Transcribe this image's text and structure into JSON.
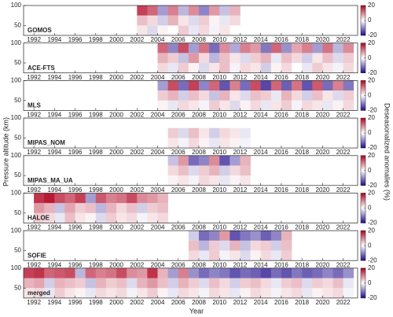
{
  "chart_data": {
    "type": "heatmap",
    "xlabel": "Year",
    "ylabel": "Pressure altitude (km)",
    "colorbar_label": "Deseasonalized anomalies (%)",
    "xlim": [
      1991,
      2023.4
    ],
    "xticks": [
      1992,
      1994,
      1996,
      1998,
      2000,
      2002,
      2004,
      2006,
      2008,
      2010,
      2012,
      2014,
      2016,
      2018,
      2020,
      2022
    ],
    "ylim": [
      25,
      100
    ],
    "yticks": [
      50,
      100
    ],
    "clim": [
      -20,
      20
    ],
    "cticks": [
      20,
      0,
      -20
    ],
    "colormap": [
      "#1e0a8c",
      "#ffffff",
      "#b0001e"
    ],
    "x_bins": [
      1991,
      1992,
      1993,
      1994,
      1995,
      1996,
      1997,
      1998,
      1999,
      2000,
      2001,
      2002,
      2003,
      2004,
      2005,
      2006,
      2007,
      2008,
      2009,
      2010,
      2011,
      2012,
      2013,
      2014,
      2015,
      2016,
      2017,
      2018,
      2019,
      2020,
      2021,
      2022,
      2023
    ],
    "y_bins": [
      25,
      50,
      75,
      100
    ],
    "panels": [
      {
        "name": "GOMOS",
        "values": [
          [
            null,
            null,
            null,
            null,
            null,
            null,
            null,
            null,
            null,
            null,
            null,
            2,
            -3,
            1,
            0,
            4,
            -2,
            3,
            -1,
            2,
            0,
            null,
            null,
            null,
            null,
            null,
            null,
            null,
            null,
            null,
            null,
            null
          ],
          [
            null,
            null,
            null,
            null,
            null,
            null,
            null,
            null,
            null,
            null,
            null,
            5,
            3,
            -4,
            6,
            2,
            -3,
            4,
            1,
            -2,
            3,
            null,
            null,
            null,
            null,
            null,
            null,
            null,
            null,
            null,
            null,
            null
          ],
          [
            null,
            null,
            null,
            null,
            null,
            null,
            null,
            null,
            null,
            null,
            null,
            15,
            12,
            -8,
            10,
            -6,
            9,
            -10,
            8,
            -5,
            6,
            null,
            null,
            null,
            null,
            null,
            null,
            null,
            null,
            null,
            null,
            null
          ]
        ]
      },
      {
        "name": "ACE-FTS",
        "values": [
          [
            null,
            null,
            null,
            null,
            null,
            null,
            null,
            null,
            null,
            null,
            null,
            null,
            null,
            3,
            -2,
            4,
            1,
            -3,
            2,
            5,
            -1,
            3,
            2,
            -4,
            1,
            3,
            0,
            -2,
            4,
            2,
            -1,
            3
          ],
          [
            null,
            null,
            null,
            null,
            null,
            null,
            null,
            null,
            null,
            null,
            null,
            null,
            null,
            6,
            4,
            -5,
            8,
            3,
            -6,
            5,
            2,
            -3,
            4,
            6,
            -2,
            5,
            3,
            -4,
            2,
            5,
            -3,
            4
          ],
          [
            null,
            null,
            null,
            null,
            null,
            null,
            null,
            null,
            null,
            null,
            null,
            null,
            null,
            12,
            -10,
            14,
            -8,
            11,
            -12,
            9,
            -7,
            10,
            8,
            -11,
            12,
            -9,
            7,
            10,
            -8,
            11,
            -6,
            9
          ]
        ]
      },
      {
        "name": "MLS",
        "values": [
          [
            null,
            null,
            null,
            null,
            null,
            null,
            null,
            null,
            null,
            null,
            null,
            null,
            null,
            1,
            -2,
            3,
            2,
            -1,
            4,
            2,
            -3,
            1,
            3,
            -2,
            2,
            4,
            -1,
            3,
            2,
            -2,
            1,
            3
          ],
          [
            null,
            null,
            null,
            null,
            null,
            null,
            null,
            null,
            null,
            null,
            null,
            null,
            null,
            4,
            6,
            -4,
            5,
            3,
            -5,
            6,
            2,
            -3,
            5,
            4,
            -2,
            6,
            3,
            -4,
            5,
            2,
            -3,
            4
          ],
          [
            null,
            null,
            null,
            null,
            null,
            null,
            null,
            null,
            null,
            null,
            null,
            null,
            null,
            -8,
            14,
            -12,
            15,
            -10,
            12,
            -14,
            10,
            -12,
            14,
            -15,
            12,
            -13,
            11,
            -14,
            13,
            -12,
            10,
            -11
          ]
        ]
      },
      {
        "name": "MIPAS_NOM",
        "values": [
          [
            null,
            null,
            null,
            null,
            null,
            null,
            null,
            null,
            null,
            null,
            null,
            null,
            null,
            null,
            2,
            -1,
            3,
            1,
            -2,
            2,
            1,
            -1,
            null,
            null,
            null,
            null,
            null,
            null,
            null,
            null,
            null,
            null
          ],
          [
            null,
            null,
            null,
            null,
            null,
            null,
            null,
            null,
            null,
            null,
            null,
            null,
            null,
            null,
            4,
            -3,
            5,
            2,
            -4,
            3,
            2,
            -2,
            null,
            null,
            null,
            null,
            null,
            null,
            null,
            null,
            null,
            null
          ],
          [
            null,
            null,
            null,
            null,
            null,
            null,
            null,
            null,
            null,
            null,
            null,
            null,
            null,
            null,
            null,
            null,
            null,
            null,
            null,
            null,
            null,
            null,
            null,
            null,
            null,
            null,
            null,
            null,
            null,
            null,
            null,
            null
          ]
        ]
      },
      {
        "name": "MIPAS_MA_UA",
        "values": [
          [
            null,
            null,
            null,
            null,
            null,
            null,
            null,
            null,
            null,
            null,
            null,
            null,
            null,
            null,
            1,
            2,
            -1,
            3,
            2,
            -2,
            1,
            2,
            null,
            null,
            null,
            null,
            null,
            null,
            null,
            null,
            null,
            null
          ],
          [
            null,
            null,
            null,
            null,
            null,
            null,
            null,
            null,
            null,
            null,
            null,
            null,
            null,
            null,
            3,
            5,
            -3,
            4,
            6,
            -4,
            3,
            5,
            null,
            null,
            null,
            null,
            null,
            null,
            null,
            null,
            null,
            null
          ],
          [
            null,
            null,
            null,
            null,
            null,
            null,
            null,
            null,
            null,
            null,
            null,
            null,
            null,
            null,
            -5,
            8,
            -12,
            -10,
            9,
            -14,
            -8,
            6,
            null,
            null,
            null,
            null,
            null,
            null,
            null,
            null,
            null,
            null
          ]
        ]
      },
      {
        "name": "HALOE",
        "values": [
          [
            null,
            4,
            3,
            -2,
            5,
            2,
            1,
            -3,
            4,
            2,
            3,
            -1,
            2,
            3,
            null,
            null,
            null,
            null,
            null,
            null,
            null,
            null,
            null,
            null,
            null,
            null,
            null,
            null,
            null,
            null,
            null,
            null
          ],
          [
            null,
            8,
            6,
            -5,
            7,
            4,
            5,
            -6,
            6,
            3,
            5,
            -4,
            4,
            5,
            null,
            null,
            null,
            null,
            null,
            null,
            null,
            null,
            null,
            null,
            null,
            null,
            null,
            null,
            null,
            null,
            null,
            null
          ],
          [
            null,
            16,
            18,
            14,
            12,
            15,
            -8,
            13,
            10,
            11,
            14,
            9,
            8,
            6,
            null,
            null,
            null,
            null,
            null,
            null,
            null,
            null,
            null,
            null,
            null,
            null,
            null,
            null,
            null,
            null,
            null,
            null
          ]
        ]
      },
      {
        "name": "SOFIE",
        "values": [
          [
            null,
            null,
            null,
            null,
            null,
            null,
            null,
            null,
            null,
            null,
            null,
            null,
            null,
            null,
            null,
            null,
            3,
            -2,
            4,
            -1,
            2,
            -3,
            1,
            3,
            -2,
            4,
            null,
            null,
            null,
            null,
            null,
            null
          ],
          [
            null,
            null,
            null,
            null,
            null,
            null,
            null,
            null,
            null,
            null,
            null,
            null,
            null,
            null,
            null,
            null,
            5,
            -6,
            4,
            -3,
            6,
            -5,
            3,
            4,
            -4,
            5,
            null,
            null,
            null,
            null,
            null,
            null
          ],
          [
            null,
            null,
            null,
            null,
            null,
            null,
            null,
            null,
            null,
            null,
            null,
            null,
            null,
            null,
            null,
            null,
            -4,
            -12,
            -10,
            8,
            -14,
            -11,
            -9,
            -13,
            -10,
            6,
            null,
            null,
            null,
            null,
            null,
            null
          ]
        ]
      },
      {
        "name": "merged",
        "values": [
          [
            2,
            3,
            -2,
            4,
            2,
            1,
            -2,
            3,
            2,
            3,
            -1,
            2,
            4,
            1,
            -2,
            3,
            2,
            -1,
            3,
            2,
            -2,
            1,
            3,
            2,
            -1,
            2,
            3,
            -2,
            1,
            2,
            3,
            -1
          ],
          [
            6,
            7,
            -4,
            6,
            5,
            4,
            -5,
            6,
            4,
            5,
            -3,
            6,
            8,
            5,
            -4,
            6,
            4,
            -3,
            5,
            3,
            -4,
            4,
            5,
            3,
            -2,
            4,
            5,
            -3,
            4,
            3,
            5,
            -2
          ],
          [
            15,
            16,
            12,
            13,
            14,
            -6,
            12,
            10,
            11,
            14,
            9,
            8,
            16,
            6,
            -8,
            10,
            -9,
            -12,
            -10,
            -11,
            -14,
            -12,
            -13,
            -15,
            -12,
            -14,
            -11,
            -13,
            -12,
            -10,
            -12,
            -9
          ]
        ]
      }
    ]
  }
}
